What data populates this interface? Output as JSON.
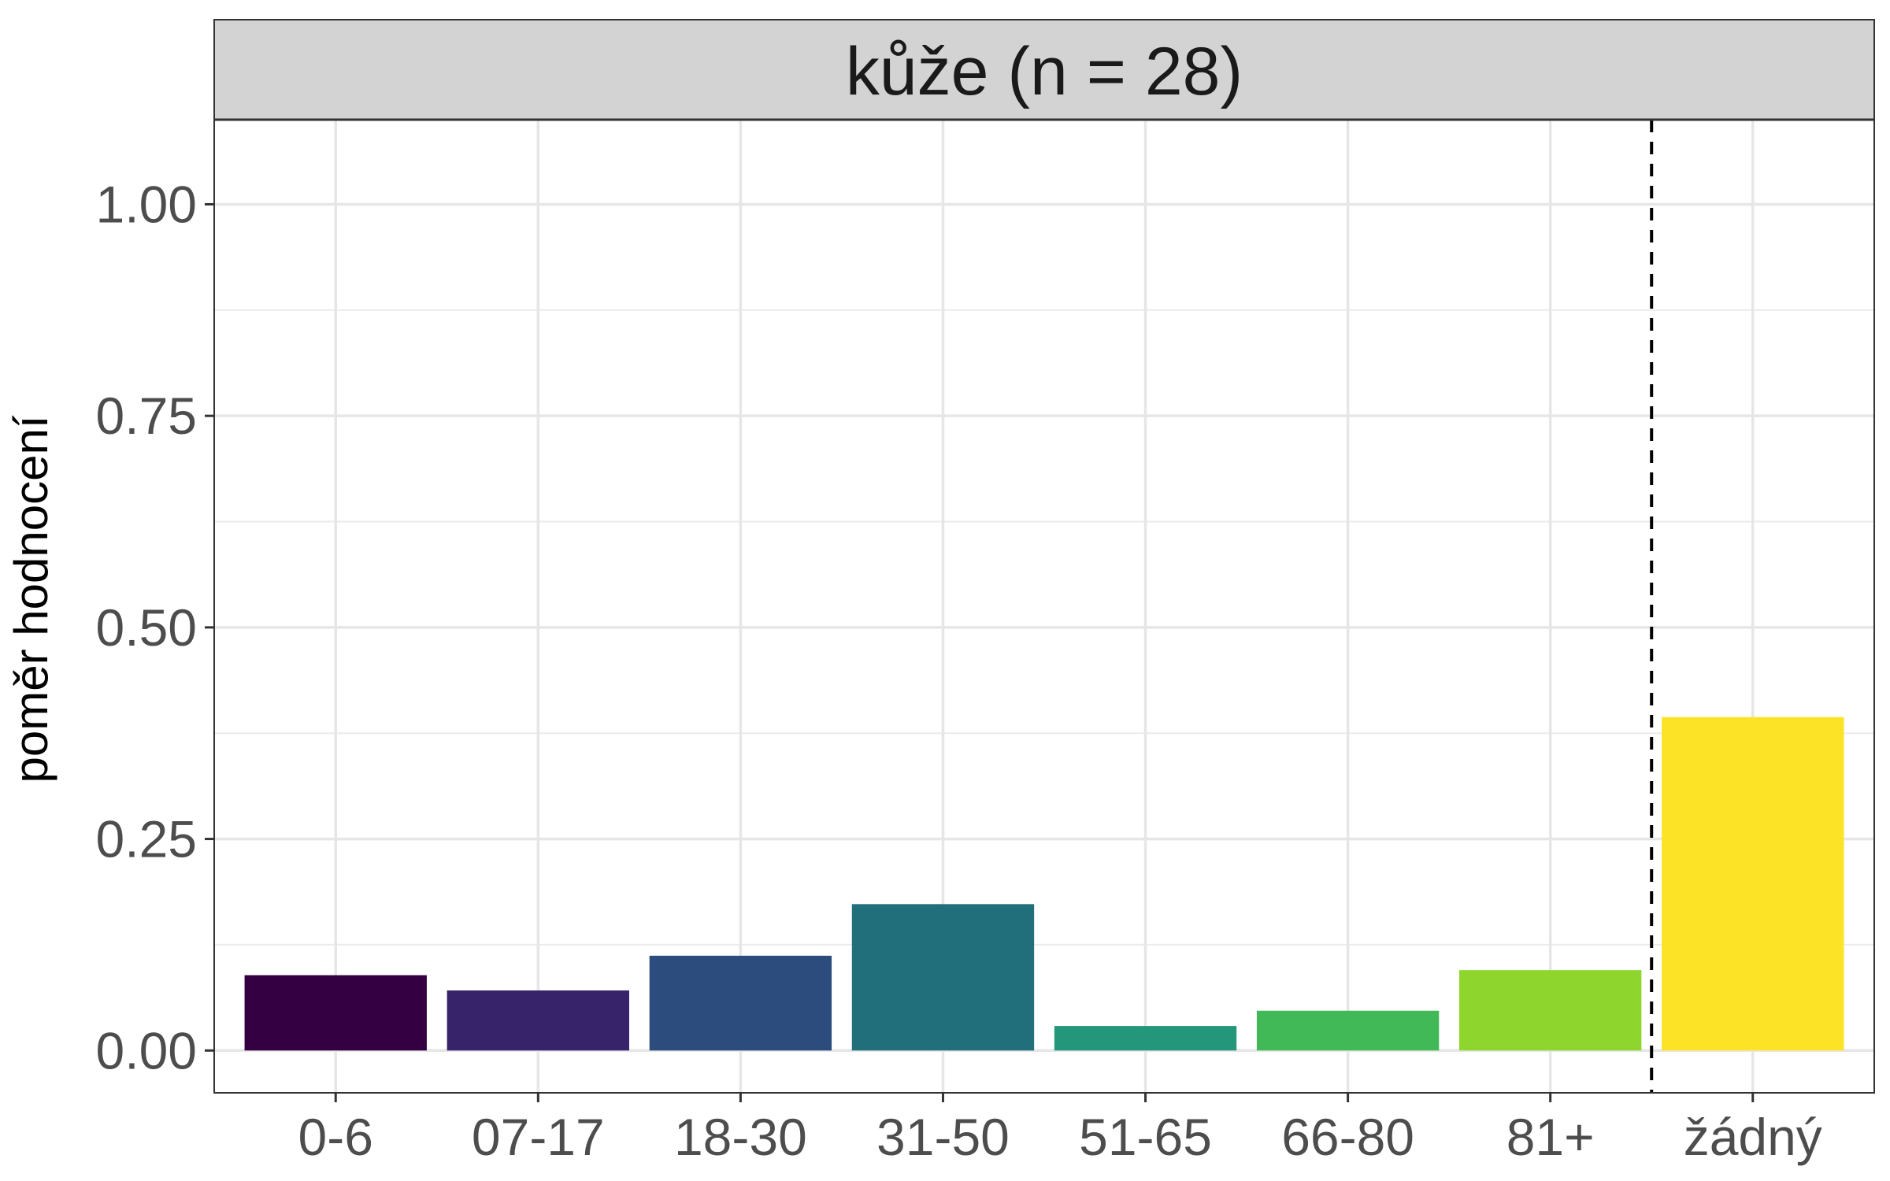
{
  "chart_data": {
    "type": "bar",
    "title": "kůže (n = 28)",
    "xlabel": "",
    "ylabel": "poměr hodnocení",
    "categories": [
      "0-6",
      "07-17",
      "18-30",
      "31-50",
      "51-65",
      "66-80",
      "81+",
      "žádný"
    ],
    "values": [
      0.089,
      0.071,
      0.112,
      0.173,
      0.029,
      0.047,
      0.095,
      0.394
    ],
    "colors": [
      "#340042",
      "#37236a",
      "#2b4c7c",
      "#226f7c",
      "#24977b",
      "#41b957",
      "#8ed52e",
      "#fde325"
    ],
    "ylim": [
      -0.05,
      1.1
    ],
    "yticks": [
      "0.00",
      "0.25",
      "0.50",
      "0.75",
      "1.00"
    ],
    "ytick_values": [
      0,
      0.25,
      0.5,
      0.75,
      1.0
    ],
    "grid": true,
    "reference_line": {
      "style": "dashed",
      "between": [
        "81+",
        "žádný"
      ]
    }
  }
}
